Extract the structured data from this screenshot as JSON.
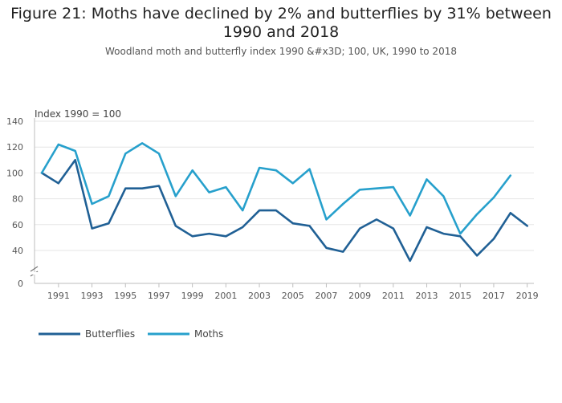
{
  "title": "Figure 21: Moths have declined by 2% and butterflies by 31% between 1990 and 2018",
  "subtitle": "Woodland moth and butterfly index 1990 &#x3D; 100, UK, 1990 to 2018",
  "chart_data": {
    "type": "line",
    "title": "Figure 21: Moths have declined by 2% and butterflies by 31% between 1990 and 2018",
    "subtitle": "Woodland moth and butterfly index 1990 &#x3D; 100, UK, 1990 to 2018",
    "ylabel": "Index 1990 = 100",
    "xlabel": "",
    "x": [
      1990,
      1991,
      1992,
      1993,
      1994,
      1995,
      1996,
      1997,
      1998,
      1999,
      2000,
      2001,
      2002,
      2003,
      2004,
      2005,
      2006,
      2007,
      2008,
      2009,
      2010,
      2011,
      2012,
      2013,
      2014,
      2015,
      2016,
      2017,
      2018,
      2019
    ],
    "x_ticks": [
      "1991",
      "1993",
      "1995",
      "1997",
      "1999",
      "2001",
      "2003",
      "2005",
      "2007",
      "2009",
      "2011",
      "2013",
      "2015",
      "2017",
      "2019"
    ],
    "y_ticks": [
      "0",
      "40",
      "60",
      "80",
      "100",
      "120",
      "140"
    ],
    "ylim": [
      30,
      140
    ],
    "axis_break": true,
    "legend_position": "bottom-left",
    "series": [
      {
        "name": "Butterflies",
        "color": "#206095",
        "values": [
          100,
          92,
          110,
          57,
          61,
          88,
          88,
          90,
          59,
          51,
          53,
          51,
          58,
          71,
          71,
          61,
          59,
          42,
          39,
          57,
          64,
          57,
          32,
          58,
          53,
          51,
          36,
          49,
          69,
          59
        ]
      },
      {
        "name": "Moths",
        "color": "#27a0cc",
        "values": [
          100,
          122,
          117,
          76,
          82,
          115,
          123,
          115,
          82,
          102,
          85,
          89,
          71,
          104,
          102,
          92,
          103,
          64,
          76,
          87,
          88,
          89,
          67,
          95,
          82,
          53,
          68,
          81,
          98,
          null
        ]
      }
    ]
  }
}
